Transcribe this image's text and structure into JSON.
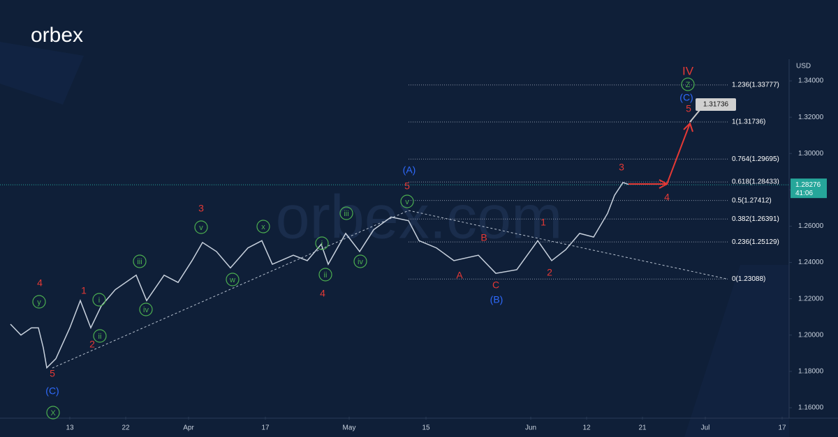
{
  "chart_data": {
    "type": "line",
    "logo": "orbex",
    "watermark": "orbex.com",
    "y_unit": "USD",
    "color": "#c9d2de",
    "x": [
      1.5,
      3,
      4.5,
      5.5,
      6.2,
      6.7,
      8,
      10,
      11.5,
      13,
      14.5,
      16.5,
      19.5,
      21,
      23.5,
      25.5,
      27.5,
      29,
      31,
      33,
      35.5,
      37.5,
      39,
      42,
      44,
      46,
      47,
      49.5,
      51.5,
      53.5,
      56,
      58.5,
      60,
      62.5,
      65,
      68.5,
      71,
      74,
      77,
      79,
      81,
      83,
      85,
      87,
      88,
      89.2,
      90
    ],
    "values": [
      1.206,
      1.2,
      1.204,
      1.204,
      1.193,
      1.182,
      1.187,
      1.204,
      1.219,
      1.204,
      1.216,
      1.225,
      1.233,
      1.219,
      1.233,
      1.229,
      1.241,
      1.251,
      1.246,
      1.237,
      1.248,
      1.252,
      1.239,
      1.244,
      1.241,
      1.25,
      1.239,
      1.256,
      1.246,
      1.258,
      1.265,
      1.263,
      1.252,
      1.248,
      1.241,
      1.244,
      1.234,
      1.236,
      1.252,
      1.241,
      1.247,
      1.256,
      1.254,
      1.267,
      1.277,
      1.284,
      1.283
    ],
    "xlim": [
      0,
      113
    ],
    "xticks": [
      {
        "value": 10,
        "label": "13"
      },
      {
        "value": 18,
        "label": "22"
      },
      {
        "value": 27,
        "label": "Apr"
      },
      {
        "value": 38,
        "label": "17"
      },
      {
        "value": 50,
        "label": "May"
      },
      {
        "value": 61,
        "label": "15"
      },
      {
        "value": 76,
        "label": "Jun"
      },
      {
        "value": 84,
        "label": "12"
      },
      {
        "value": 92,
        "label": "21"
      },
      {
        "value": 101,
        "label": "Jul"
      },
      {
        "value": 112,
        "label": "17"
      }
    ],
    "ylim": [
      1.155,
      1.35
    ],
    "yticks": [
      {
        "value": 1.16,
        "label": "1.16000"
      },
      {
        "value": 1.18,
        "label": "1.18000"
      },
      {
        "value": 1.2,
        "label": "1.20000"
      },
      {
        "value": 1.22,
        "label": "1.22000"
      },
      {
        "value": 1.24,
        "label": "1.24000"
      },
      {
        "value": 1.26,
        "label": "1.26000"
      },
      {
        "value": 1.28,
        "label": "1.28000"
      },
      {
        "value": 1.3,
        "label": "1.30000"
      },
      {
        "value": 1.32,
        "label": "1.32000"
      },
      {
        "value": 1.34,
        "label": "1.34000"
      }
    ],
    "fib_levels": [
      {
        "value": 1.23088,
        "label": "0(1.23088)"
      },
      {
        "value": 1.25129,
        "label": "0.236(1.25129)"
      },
      {
        "value": 1.26391,
        "label": "0.382(1.26391)"
      },
      {
        "value": 1.27412,
        "label": "0.5(1.27412)"
      },
      {
        "value": 1.28433,
        "label": "0.618(1.28433)"
      },
      {
        "value": 1.29695,
        "label": "0.764(1.29695)"
      },
      {
        "value": 1.31736,
        "label": "1(1.31736)"
      },
      {
        "value": 1.33777,
        "label": "1.236(1.33777)"
      }
    ],
    "price_tag": {
      "value": 1.28276,
      "label": "1.28276",
      "countdown": "41:06"
    },
    "target": {
      "value": 1.31736,
      "label": "1.31736"
    },
    "wave_labels": [
      {
        "text": "4",
        "color": "#e53935"
      },
      {
        "text": "1",
        "color": "#e53935"
      },
      {
        "text": "2",
        "color": "#e53935"
      },
      {
        "text": "5",
        "color": "#e53935"
      },
      {
        "text": "3",
        "color": "#e53935"
      },
      {
        "text": "4",
        "color": "#e53935"
      },
      {
        "text": "5",
        "color": "#e53935"
      },
      {
        "text": "A",
        "color": "#e53935"
      },
      {
        "text": "B",
        "color": "#e53935"
      },
      {
        "text": "C",
        "color": "#e53935"
      },
      {
        "text": "1",
        "color": "#e53935"
      },
      {
        "text": "2",
        "color": "#e53935"
      },
      {
        "text": "3",
        "color": "#e53935"
      },
      {
        "text": "4",
        "color": "#e53935"
      },
      {
        "text": "5",
        "color": "#e53935"
      },
      {
        "text": "IV",
        "color": "#e53935"
      },
      {
        "text": "(C)",
        "color": "#2f6bff"
      },
      {
        "text": "(A)",
        "color": "#2f6bff"
      },
      {
        "text": "(B)",
        "color": "#2f6bff"
      },
      {
        "text": "(C)",
        "color": "#2f6bff"
      }
    ],
    "circled_labels": [
      {
        "text": "y",
        "color": "#4caf50"
      },
      {
        "text": "X",
        "color": "#4caf50"
      },
      {
        "text": "i",
        "color": "#4caf50"
      },
      {
        "text": "ii",
        "color": "#4caf50"
      },
      {
        "text": "iii",
        "color": "#4caf50"
      },
      {
        "text": "iv",
        "color": "#4caf50"
      },
      {
        "text": "v",
        "color": "#4caf50"
      },
      {
        "text": "w",
        "color": "#4caf50"
      },
      {
        "text": "x",
        "color": "#4caf50"
      },
      {
        "text": "i",
        "color": "#4caf50"
      },
      {
        "text": "ii",
        "color": "#4caf50"
      },
      {
        "text": "iii",
        "color": "#4caf50"
      },
      {
        "text": "iv",
        "color": "#4caf50"
      },
      {
        "text": "v",
        "color": "#4caf50"
      },
      {
        "text": "Z",
        "color": "#4caf50"
      }
    ]
  }
}
